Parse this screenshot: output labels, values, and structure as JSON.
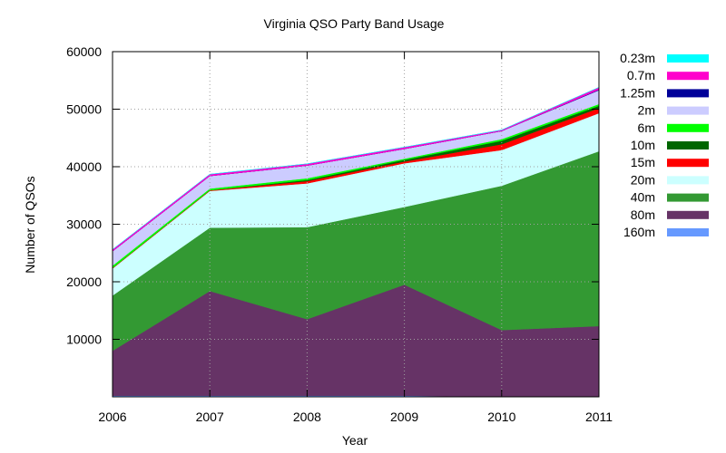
{
  "chart_data": {
    "type": "area",
    "stacked": true,
    "title": "Virginia QSO Party Band Usage",
    "xlabel": "Year",
    "ylabel": "Number of QSOs",
    "x": [
      2006,
      2007,
      2008,
      2009,
      2010,
      2011
    ],
    "x_ticks": [
      "2006",
      "2007",
      "2008",
      "2009",
      "2010",
      "2011"
    ],
    "xlim": [
      2006,
      2011
    ],
    "ylim": [
      0,
      60000
    ],
    "y_ticks": [
      "10000",
      "20000",
      "30000",
      "40000",
      "50000",
      "60000"
    ],
    "y_tick_values": [
      10000,
      20000,
      30000,
      40000,
      50000,
      60000
    ],
    "grid": true,
    "legend_position": "right",
    "series": [
      {
        "name": "160m",
        "color": "#6699ff",
        "values": [
          200,
          200,
          200,
          200,
          0,
          0
        ]
      },
      {
        "name": "80m",
        "color": "#663366",
        "values": [
          7800,
          18200,
          13300,
          19300,
          11600,
          12300
        ]
      },
      {
        "name": "40m",
        "color": "#339933",
        "values": [
          9600,
          11000,
          16000,
          13500,
          25100,
          30400
        ]
      },
      {
        "name": "20m",
        "color": "#ccffff",
        "values": [
          4700,
          6400,
          7600,
          7600,
          6200,
          6600
        ]
      },
      {
        "name": "15m",
        "color": "#ff0000",
        "values": [
          100,
          100,
          400,
          300,
          1000,
          900
        ]
      },
      {
        "name": "10m",
        "color": "#006600",
        "values": [
          0,
          0,
          200,
          300,
          600,
          400
        ]
      },
      {
        "name": "6m",
        "color": "#00ff00",
        "values": [
          400,
          300,
          300,
          200,
          300,
          300
        ]
      },
      {
        "name": "2m",
        "color": "#ccccff",
        "values": [
          2500,
          2200,
          2200,
          1700,
          1400,
          2400
        ]
      },
      {
        "name": "1.25m",
        "color": "#000099",
        "values": [
          0,
          0,
          0,
          0,
          0,
          100
        ]
      },
      {
        "name": "0.7m",
        "color": "#ff00cc",
        "values": [
          300,
          300,
          300,
          300,
          200,
          400
        ]
      },
      {
        "name": "0.23m",
        "color": "#00ffff",
        "values": [
          0,
          0,
          0,
          0,
          0,
          0
        ]
      }
    ],
    "legend_order": [
      "0.23m",
      "0.7m",
      "1.25m",
      "2m",
      "6m",
      "10m",
      "15m",
      "20m",
      "40m",
      "80m",
      "160m"
    ]
  }
}
